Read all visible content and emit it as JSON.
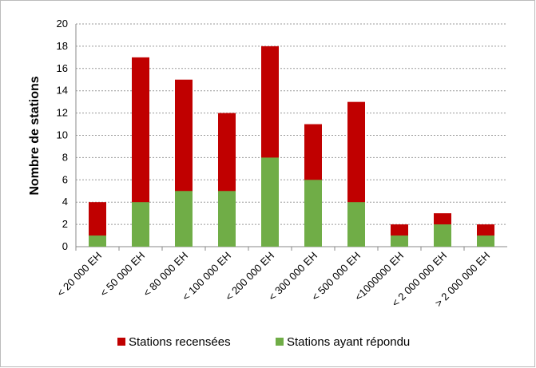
{
  "chart_data": {
    "type": "bar",
    "y_label": "Nombre de stations",
    "categories": [
      "< 20 000 EH",
      "< 50 000 EH",
      "< 80 000 EH",
      "< 100 000 EH",
      "< 200 000 EH",
      "< 300 000 EH",
      "< 500 000 EH",
      "<1000000 EH",
      "< 2 000 000 EH",
      "> 2 000 000 EH"
    ],
    "series": [
      {
        "name": "Stations recensées",
        "color": "#c00000",
        "values": [
          4,
          17,
          15,
          12,
          18,
          11,
          13,
          2,
          3,
          2
        ]
      },
      {
        "name": "Stations ayant répondu",
        "color": "#70ad47",
        "values": [
          1,
          4,
          5,
          5,
          8,
          6,
          4,
          1,
          2,
          1
        ]
      }
    ],
    "ylim": [
      0,
      20
    ],
    "yticks": [
      0,
      2,
      4,
      6,
      8,
      10,
      12,
      14,
      16,
      18,
      20
    ],
    "grid": true,
    "legend": "bottom"
  }
}
